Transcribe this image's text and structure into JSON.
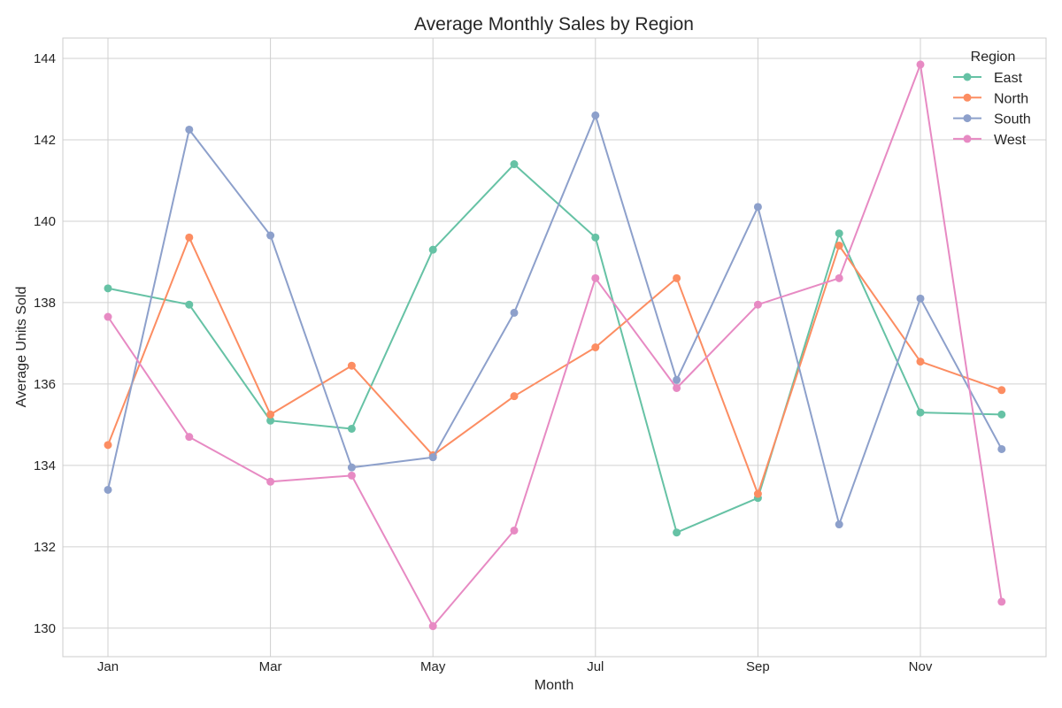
{
  "chart_data": {
    "type": "line",
    "title": "Average Monthly Sales by Region",
    "xlabel": "Month",
    "ylabel": "Average Units Sold",
    "x": [
      "Jan",
      "Feb",
      "Mar",
      "Apr",
      "May",
      "Jun",
      "Jul",
      "Aug",
      "Sep",
      "Oct",
      "Nov",
      "Dec"
    ],
    "x_tick_labels": [
      "Jan",
      "Mar",
      "May",
      "Jul",
      "Sep",
      "Nov"
    ],
    "ylim": [
      129.3,
      144.5
    ],
    "y_ticks": [
      130,
      132,
      134,
      136,
      138,
      140,
      142,
      144
    ],
    "grid": true,
    "legend": {
      "title": "Region",
      "placement": "top-right"
    },
    "series": [
      {
        "name": "East",
        "color": "#66c2a5",
        "values": [
          138.35,
          137.95,
          135.1,
          134.9,
          139.3,
          141.4,
          139.6,
          132.35,
          133.2,
          139.7,
          135.3,
          135.25
        ]
      },
      {
        "name": "North",
        "color": "#fc8d62",
        "values": [
          134.5,
          139.6,
          135.25,
          136.45,
          134.25,
          135.7,
          136.9,
          138.6,
          133.3,
          139.4,
          136.55,
          135.85
        ]
      },
      {
        "name": "South",
        "color": "#8da0cb",
        "values": [
          133.4,
          142.25,
          139.65,
          133.95,
          134.2,
          137.75,
          142.6,
          136.1,
          140.35,
          132.55,
          138.1,
          134.4
        ]
      },
      {
        "name": "West",
        "color": "#e78ac3",
        "values": [
          137.65,
          134.7,
          133.6,
          133.75,
          130.05,
          132.4,
          138.6,
          135.9,
          137.95,
          138.6,
          143.85,
          130.65
        ]
      }
    ]
  }
}
